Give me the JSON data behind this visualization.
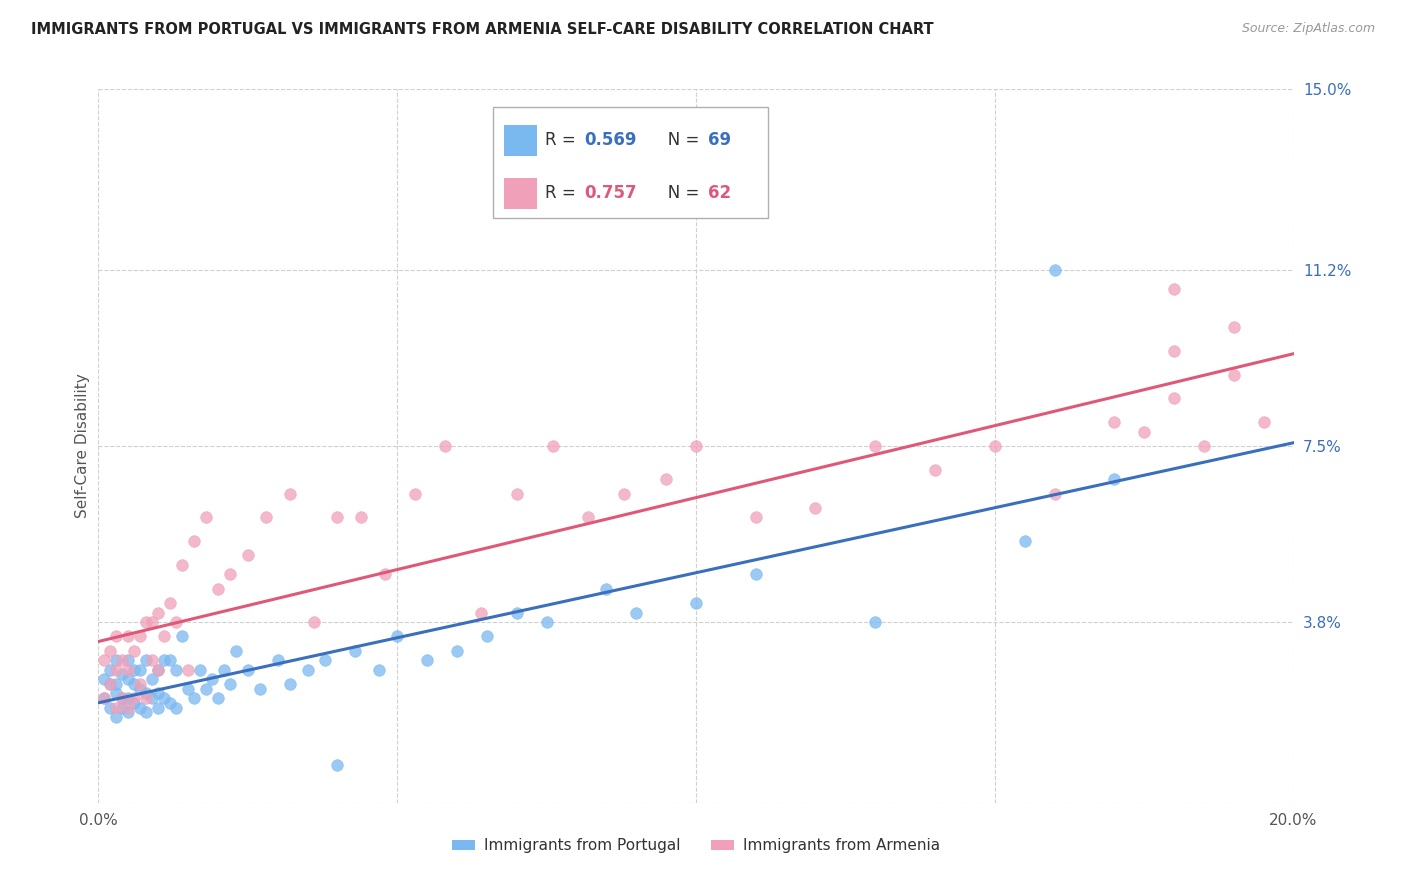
{
  "title": "IMMIGRANTS FROM PORTUGAL VS IMMIGRANTS FROM ARMENIA SELF-CARE DISABILITY CORRELATION CHART",
  "source": "Source: ZipAtlas.com",
  "ylabel": "Self-Care Disability",
  "xlim": [
    0.0,
    0.2
  ],
  "ylim": [
    0.0,
    0.15
  ],
  "xticks": [
    0.0,
    0.05,
    0.1,
    0.15,
    0.2
  ],
  "xtick_labels": [
    "0.0%",
    "",
    "",
    "",
    "20.0%"
  ],
  "ytick_labels_right": [
    "15.0%",
    "11.2%",
    "7.5%",
    "3.8%",
    ""
  ],
  "yticks_right": [
    0.15,
    0.112,
    0.075,
    0.038,
    0.0
  ],
  "color_blue": "#7ab8f0",
  "color_pink": "#f0a0b8",
  "line_color_blue": "#3a6fbd",
  "line_color_pink": "#e05878",
  "portugal_x": [
    0.001,
    0.001,
    0.002,
    0.002,
    0.002,
    0.003,
    0.003,
    0.003,
    0.003,
    0.004,
    0.004,
    0.004,
    0.005,
    0.005,
    0.005,
    0.005,
    0.006,
    0.006,
    0.006,
    0.007,
    0.007,
    0.007,
    0.008,
    0.008,
    0.008,
    0.009,
    0.009,
    0.01,
    0.01,
    0.01,
    0.011,
    0.011,
    0.012,
    0.012,
    0.013,
    0.013,
    0.014,
    0.015,
    0.016,
    0.017,
    0.018,
    0.019,
    0.02,
    0.021,
    0.022,
    0.023,
    0.025,
    0.027,
    0.03,
    0.032,
    0.035,
    0.038,
    0.04,
    0.043,
    0.047,
    0.05,
    0.055,
    0.06,
    0.065,
    0.07,
    0.075,
    0.085,
    0.09,
    0.1,
    0.11,
    0.13,
    0.155,
    0.16,
    0.17
  ],
  "portugal_y": [
    0.022,
    0.026,
    0.02,
    0.025,
    0.028,
    0.018,
    0.023,
    0.025,
    0.03,
    0.02,
    0.022,
    0.027,
    0.019,
    0.022,
    0.026,
    0.03,
    0.021,
    0.025,
    0.028,
    0.02,
    0.024,
    0.028,
    0.019,
    0.023,
    0.03,
    0.022,
    0.026,
    0.02,
    0.023,
    0.028,
    0.022,
    0.03,
    0.021,
    0.03,
    0.02,
    0.028,
    0.035,
    0.024,
    0.022,
    0.028,
    0.024,
    0.026,
    0.022,
    0.028,
    0.025,
    0.032,
    0.028,
    0.024,
    0.03,
    0.025,
    0.028,
    0.03,
    0.008,
    0.032,
    0.028,
    0.035,
    0.03,
    0.032,
    0.035,
    0.04,
    0.038,
    0.045,
    0.04,
    0.042,
    0.048,
    0.038,
    0.055,
    0.112,
    0.068
  ],
  "armenia_x": [
    0.001,
    0.001,
    0.002,
    0.002,
    0.003,
    0.003,
    0.003,
    0.004,
    0.004,
    0.005,
    0.005,
    0.005,
    0.006,
    0.006,
    0.007,
    0.007,
    0.008,
    0.008,
    0.009,
    0.009,
    0.01,
    0.01,
    0.011,
    0.012,
    0.013,
    0.014,
    0.015,
    0.016,
    0.018,
    0.02,
    0.022,
    0.025,
    0.028,
    0.032,
    0.036,
    0.04,
    0.044,
    0.048,
    0.053,
    0.058,
    0.064,
    0.07,
    0.076,
    0.082,
    0.088,
    0.095,
    0.1,
    0.11,
    0.12,
    0.13,
    0.14,
    0.15,
    0.16,
    0.17,
    0.175,
    0.18,
    0.185,
    0.19,
    0.195,
    0.18,
    0.19,
    0.18
  ],
  "armenia_y": [
    0.022,
    0.03,
    0.025,
    0.032,
    0.02,
    0.028,
    0.035,
    0.022,
    0.03,
    0.02,
    0.028,
    0.035,
    0.022,
    0.032,
    0.025,
    0.035,
    0.022,
    0.038,
    0.03,
    0.038,
    0.028,
    0.04,
    0.035,
    0.042,
    0.038,
    0.05,
    0.028,
    0.055,
    0.06,
    0.045,
    0.048,
    0.052,
    0.06,
    0.065,
    0.038,
    0.06,
    0.06,
    0.048,
    0.065,
    0.075,
    0.04,
    0.065,
    0.075,
    0.06,
    0.065,
    0.068,
    0.075,
    0.06,
    0.062,
    0.075,
    0.07,
    0.075,
    0.065,
    0.08,
    0.078,
    0.085,
    0.075,
    0.09,
    0.08,
    0.108,
    0.1,
    0.095
  ]
}
